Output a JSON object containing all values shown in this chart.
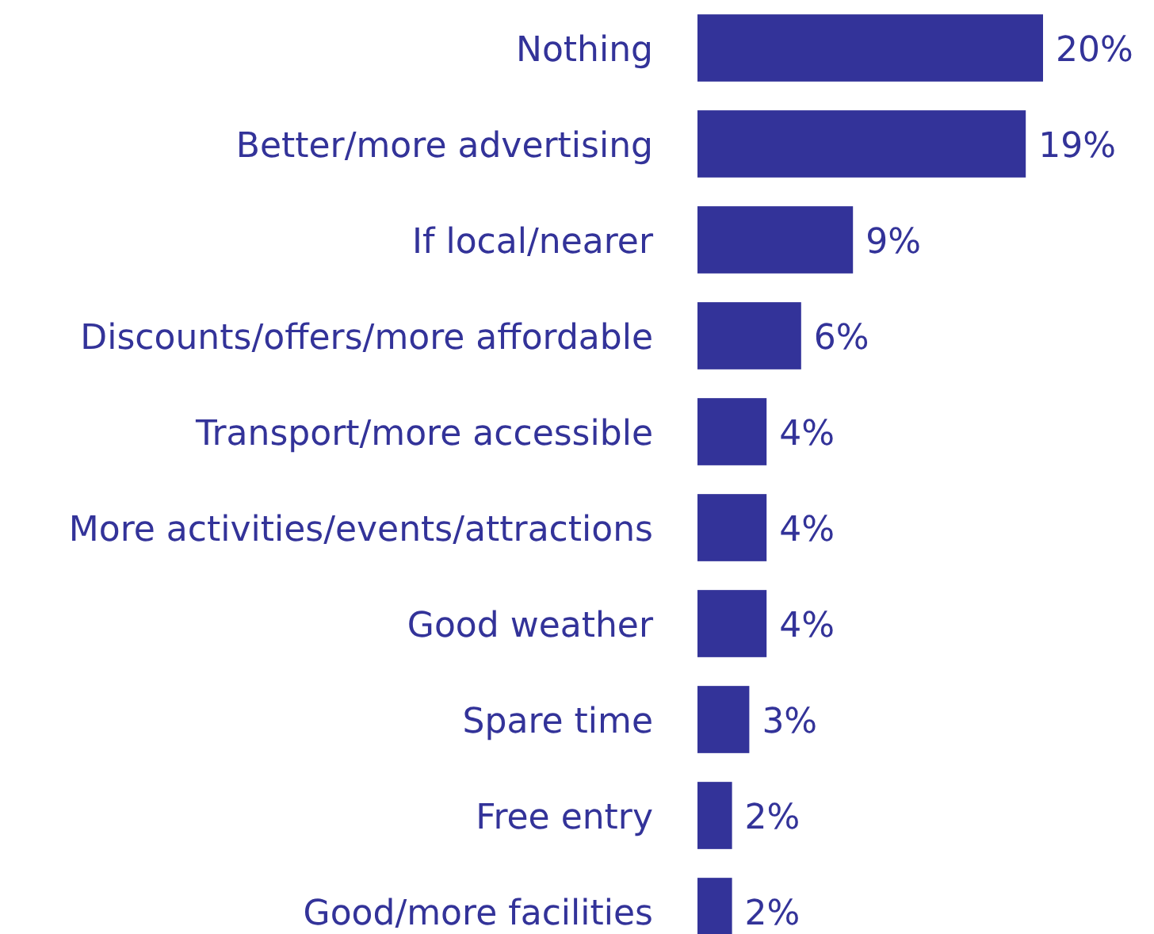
{
  "chart_data": {
    "type": "bar",
    "orientation": "horizontal",
    "categories": [
      "Nothing",
      "Better/more advertising",
      "If local/nearer",
      "Discounts/offers/more affordable",
      "Transport/more accessible",
      "More activities/events/attractions",
      "Good weather",
      "Spare time",
      "Free entry",
      "Good/more facilities"
    ],
    "values": [
      20,
      19,
      9,
      6,
      4,
      4,
      4,
      3,
      2,
      2
    ],
    "value_labels": [
      "20%",
      "19%",
      "9%",
      "6%",
      "4%",
      "4%",
      "4%",
      "3%",
      "2%",
      "2%"
    ],
    "color": "#333399"
  }
}
